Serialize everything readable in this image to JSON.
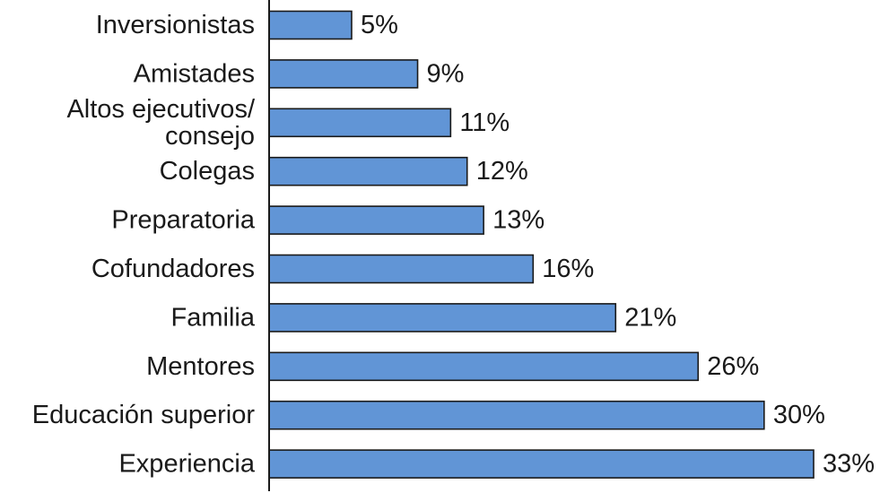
{
  "chart_data": {
    "type": "bar",
    "orientation": "horizontal",
    "categories": [
      [
        "Inversionistas"
      ],
      [
        "Amistades"
      ],
      [
        "Altos ejecutivos/",
        "consejo"
      ],
      [
        "Colegas"
      ],
      [
        "Preparatoria"
      ],
      [
        "Cofundadores"
      ],
      [
        "Familia"
      ],
      [
        "Mentores"
      ],
      [
        "Educación superior"
      ],
      [
        "Experiencia"
      ]
    ],
    "values": [
      5,
      9,
      11,
      12,
      13,
      16,
      21,
      26,
      30,
      33
    ],
    "value_labels": [
      "5%",
      "9%",
      "11%",
      "12%",
      "13%",
      "16%",
      "21%",
      "26%",
      "30%",
      "33%"
    ],
    "xlim": [
      0,
      33
    ],
    "bar_color": "#6195D6",
    "title": "",
    "xlabel": "",
    "ylabel": "",
    "grid": false,
    "legend": "none"
  }
}
